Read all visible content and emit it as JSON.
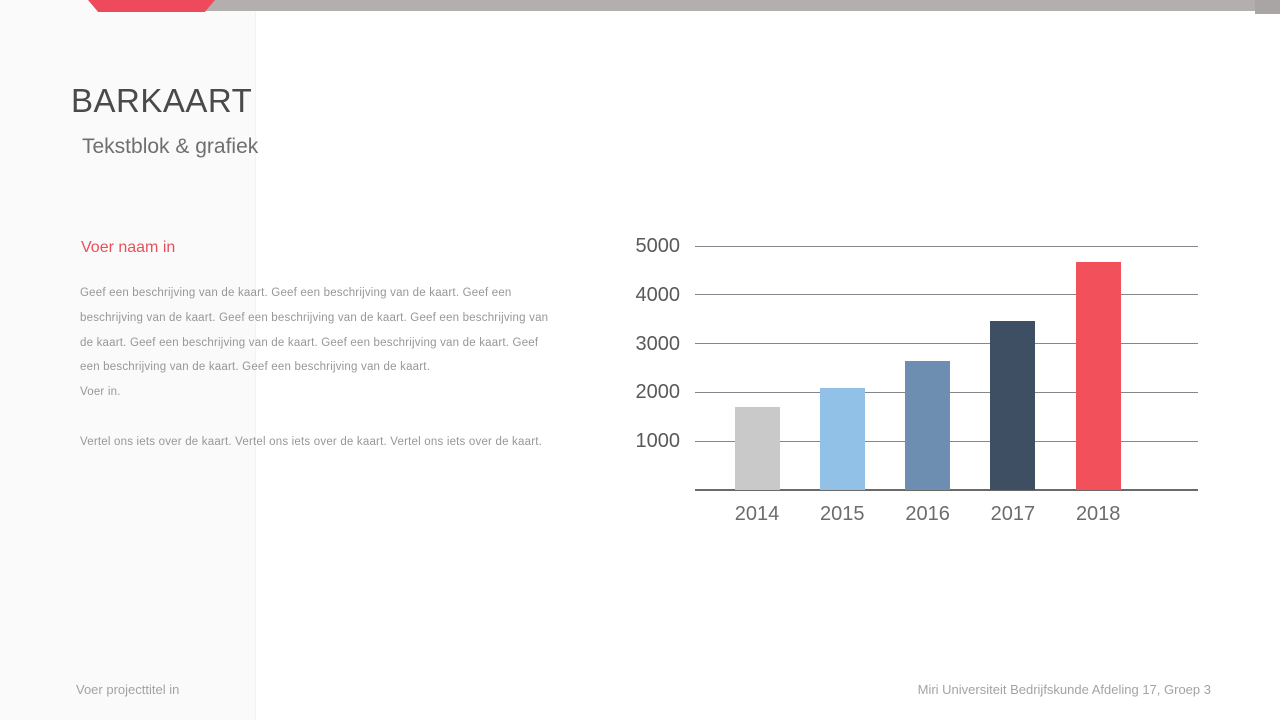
{
  "slide": {
    "title": "BARKAART",
    "subtitle": "Tekstblok & grafiek"
  },
  "left_panel": {
    "heading": "Voer naam in",
    "body_lines": [
      "Geef een beschrijving van de kaart. Geef een beschrijving van de kaart. Geef een",
      "beschrijving van de kaart. Geef een beschrijving van de kaart. Geef een beschrijving van",
      "de kaart. Geef een beschrijving van de kaart. Geef een beschrijving van de kaart. Geef",
      "een beschrijving van de kaart. Geef een beschrijving van de kaart.",
      "Voer in."
    ],
    "note": "Vertel ons iets over de kaart. Vertel ons iets over de kaart. Vertel ons iets over de kaart."
  },
  "footer": {
    "left": "Voer projecttitel in",
    "right": "Miri Universiteit Bedrijfskunde Afdeling 17, Groep 3"
  },
  "colors": {
    "accent_red": "#ee4a5b",
    "top_bar_gray": "#b3afaf",
    "top_bar_corner_gray": "#a9a5a5",
    "heading_red": "#e9505c",
    "gridline_gray": "#86868e"
  },
  "chart_data": {
    "type": "bar",
    "categories": [
      "2014",
      "2015",
      "2016",
      "2017",
      "2018"
    ],
    "values": [
      1700,
      2100,
      2650,
      3470,
      4670
    ],
    "bar_colors": [
      "#c9c9c9",
      "#92c1e8",
      "#6d8eb0",
      "#3e4f63",
      "#f2505a"
    ],
    "title": "",
    "xlabel": "",
    "ylabel": "",
    "ylim": [
      0,
      5000
    ],
    "yticks": [
      1000,
      2000,
      3000,
      4000,
      5000
    ],
    "grid": true,
    "legend": false
  }
}
